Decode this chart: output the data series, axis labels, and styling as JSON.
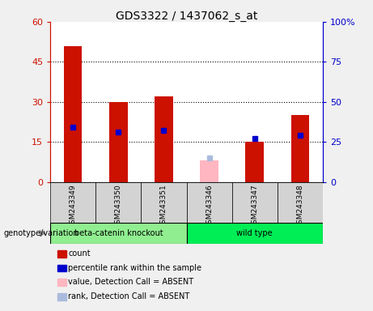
{
  "title": "GDS3322 / 1437062_s_at",
  "samples": [
    "GSM243349",
    "GSM243350",
    "GSM243351",
    "GSM243346",
    "GSM243347",
    "GSM243348"
  ],
  "bar_values": [
    51,
    30,
    32,
    null,
    15,
    25
  ],
  "bar_absent_values": [
    null,
    null,
    null,
    8,
    null,
    null
  ],
  "percentile_values": [
    34,
    31,
    32,
    null,
    27,
    29
  ],
  "percentile_absent_values": [
    null,
    null,
    null,
    15,
    null,
    null
  ],
  "bar_color_present": "#cc1100",
  "bar_color_absent": "#ffb6c1",
  "percentile_color_present": "#0000cc",
  "percentile_color_absent": "#aabbdd",
  "ylim_left": [
    0,
    60
  ],
  "ylim_right": [
    0,
    100
  ],
  "yticks_left": [
    0,
    15,
    30,
    45,
    60
  ],
  "ytick_labels_left": [
    "0",
    "15",
    "30",
    "45",
    "60"
  ],
  "yticks_right": [
    0,
    25,
    50,
    75,
    100
  ],
  "ytick_labels_right": [
    "0",
    "25",
    "50",
    "75",
    "100%"
  ],
  "left_axis_color": "#cc1100",
  "right_axis_color": "#0000cc",
  "plot_bg": "#ffffff",
  "fig_bg": "#f0f0f0",
  "sample_box_color": "#d3d3d3",
  "group1_label": "beta-catenin knockout",
  "group1_color": "#90EE90",
  "group1_indices": [
    0,
    1,
    2
  ],
  "group2_label": "wild type",
  "group2_color": "#00ee55",
  "group2_indices": [
    3,
    4,
    5
  ],
  "genotype_label": "genotype/variation",
  "legend_items": [
    {
      "label": "count",
      "color": "#cc1100"
    },
    {
      "label": "percentile rank within the sample",
      "color": "#0000cc"
    },
    {
      "label": "value, Detection Call = ABSENT",
      "color": "#ffb6c1"
    },
    {
      "label": "rank, Detection Call = ABSENT",
      "color": "#aabbdd"
    }
  ],
  "bar_width": 0.4,
  "percentile_marker_size": 5,
  "grid_dotted_color": "black",
  "grid_dotted_lw": 0.8
}
